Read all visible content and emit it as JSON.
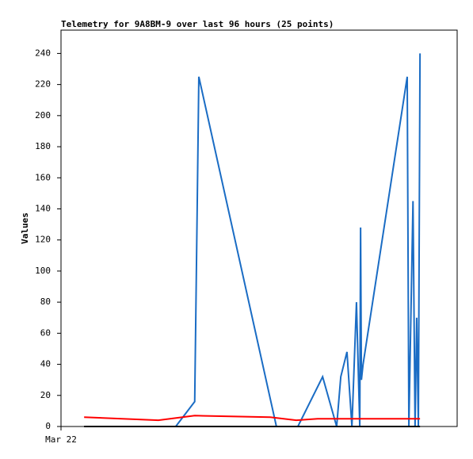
{
  "chart_data": {
    "type": "line",
    "title": "Telemetry for 9A8BM-9 over last 96 hours (25 points)",
    "y_label": "Values",
    "xlim": [
      0,
      96
    ],
    "xticks": [
      {
        "value": 0,
        "label": "Mar 22"
      }
    ],
    "ylim": [
      0,
      255
    ],
    "yticks": [
      0,
      20,
      40,
      60,
      80,
      100,
      120,
      140,
      160,
      180,
      200,
      220,
      240
    ],
    "series": [
      {
        "color": "#1a6cc4",
        "x": [
          27.8,
          32.4,
          33.0,
          33.4,
          52.2,
          57.4,
          63.4,
          66.8,
          67.8,
          69.3,
          70.5,
          71.6,
          72.4,
          72.6,
          72.8,
          73.2,
          83.9,
          84.3,
          85.3,
          85.8,
          86.2,
          86.6,
          87.0
        ],
        "values": [
          0,
          16,
          140,
          225,
          0,
          0,
          32,
          0,
          32,
          48,
          0,
          80,
          0,
          128,
          30,
          40,
          225,
          0,
          145,
          0,
          70,
          0,
          240
        ]
      },
      {
        "color": "#ff0000",
        "x": [
          5.6,
          23.6,
          32.4,
          50.7,
          57.0,
          62.2,
          87.0
        ],
        "values": [
          6,
          4,
          7,
          6,
          4,
          5,
          5
        ]
      },
      {
        "color": "#000000",
        "x": [
          5.6,
          87.0
        ],
        "values": [
          0,
          0
        ]
      }
    ]
  }
}
